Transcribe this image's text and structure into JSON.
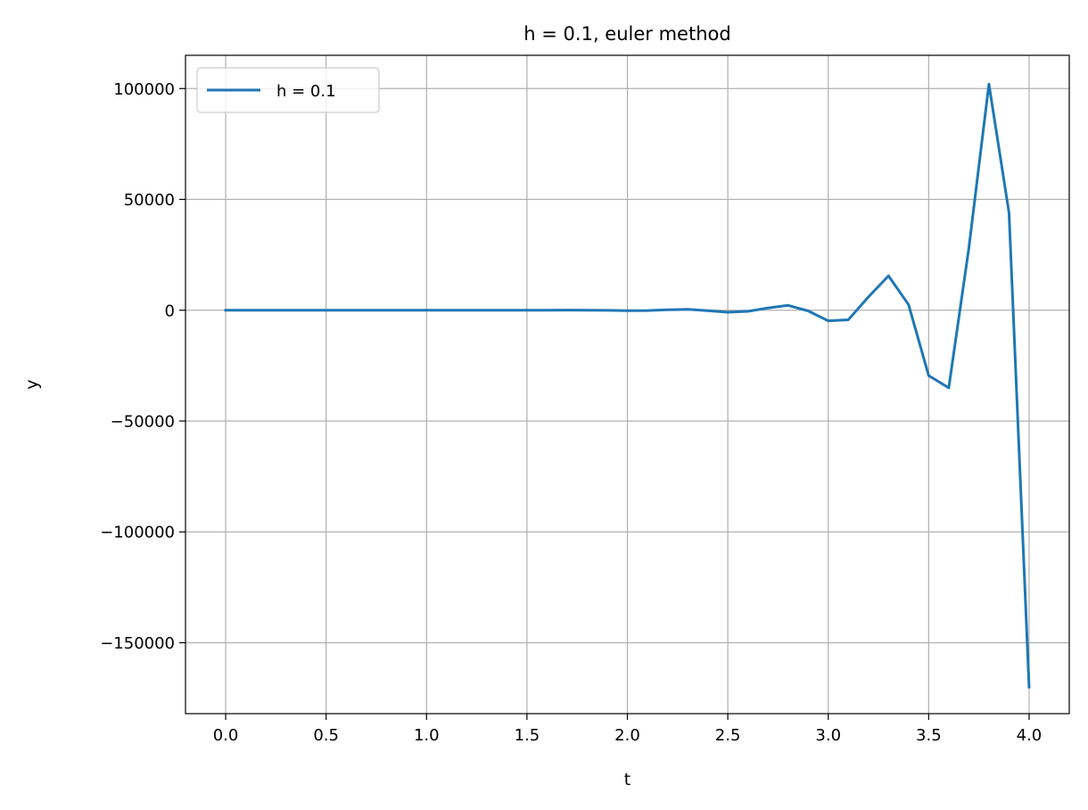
{
  "chart_data": {
    "type": "line",
    "title": "h = 0.1, euler method",
    "xlabel": "t",
    "ylabel": "y",
    "xlim": [
      -0.2,
      4.2
    ],
    "ylim": [
      -182000,
      115000
    ],
    "x_ticks": [
      0.0,
      0.5,
      1.0,
      1.5,
      2.0,
      2.5,
      3.0,
      3.5,
      4.0
    ],
    "x_tick_labels": [
      "0.0",
      "0.5",
      "1.0",
      "1.5",
      "2.0",
      "2.5",
      "3.0",
      "3.5",
      "4.0"
    ],
    "y_ticks": [
      100000,
      50000,
      0,
      -50000,
      -100000,
      -150000
    ],
    "y_tick_labels": [
      "100000",
      "50000",
      "0",
      "−50000",
      "−100000",
      "−150000"
    ],
    "grid": true,
    "legend_position": "top-left",
    "series": [
      {
        "name": "h = 0.1",
        "color": "#1f77b4",
        "x": [
          0.0,
          0.1,
          0.2,
          0.3,
          0.4,
          0.5,
          0.6,
          0.7,
          0.8,
          0.9,
          1.0,
          1.1,
          1.2,
          1.3,
          1.4,
          1.5,
          1.6,
          1.7,
          1.8,
          1.9,
          2.0,
          2.1,
          2.2,
          2.3,
          2.4,
          2.5,
          2.6,
          2.7,
          2.8,
          2.9,
          3.0,
          3.1,
          3.2,
          3.3,
          3.4,
          3.5,
          3.6,
          3.7,
          3.8,
          3.9,
          4.0
        ],
        "y": [
          0,
          0,
          0,
          0,
          0,
          0,
          0,
          0,
          0,
          0,
          0,
          0,
          0,
          0,
          0,
          0,
          0,
          50,
          0,
          -50,
          -200,
          -150,
          200,
          400,
          -200,
          -900,
          -500,
          1000,
          2200,
          -300,
          -4800,
          -4300,
          6000,
          15500,
          2500,
          -29500,
          -35000,
          28000,
          102000,
          44000,
          -170000
        ]
      }
    ]
  }
}
